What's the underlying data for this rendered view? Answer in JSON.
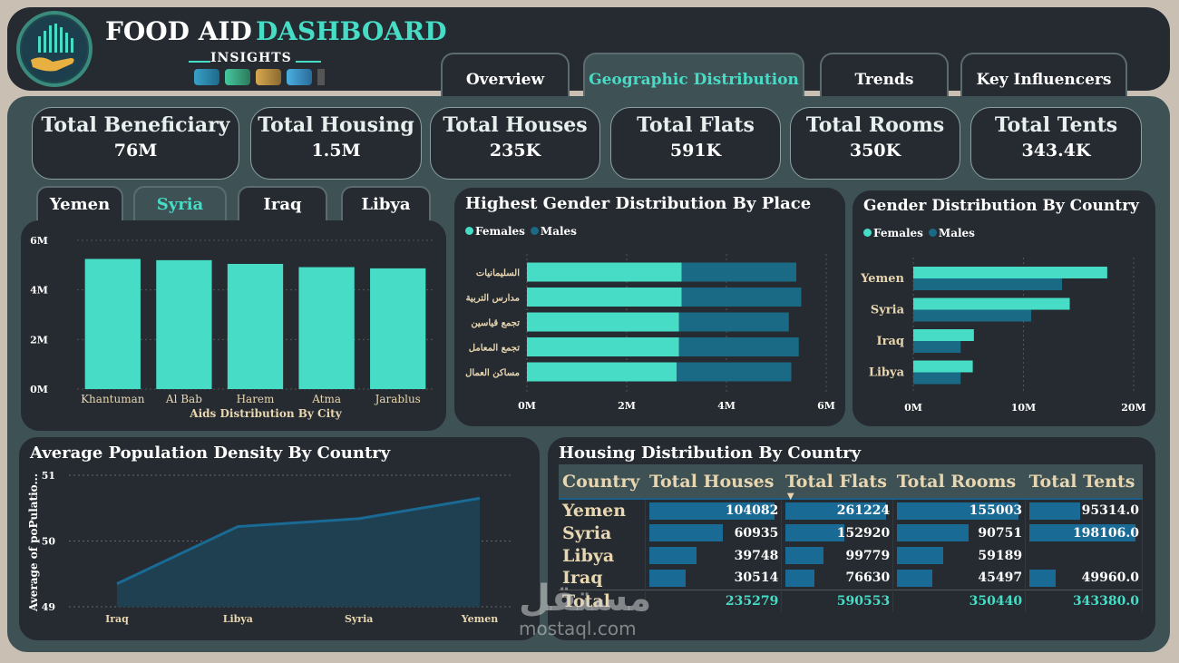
{
  "header": {
    "title_part1": "FOOD AID",
    "title_part2": "DASHBOARD",
    "subtitle": "INSIGHTS"
  },
  "nav_tabs": [
    "Overview",
    "Geographic Distribution",
    "Trends",
    "Key Influencers"
  ],
  "active_tab": "Geographic Distribution",
  "kpis": [
    {
      "label": "Total Beneficiary",
      "value": "76M"
    },
    {
      "label": "Total Housing",
      "value": "1.5M"
    },
    {
      "label": "Total Houses",
      "value": "235K"
    },
    {
      "label": "Total Flats",
      "value": "591K"
    },
    {
      "label": "Total Rooms",
      "value": "350K"
    },
    {
      "label": "Total Tents",
      "value": "343.4K"
    }
  ],
  "country_tabs": [
    "Yemen",
    "Syria",
    "Iraq",
    "Libya"
  ],
  "active_country": "Syria",
  "colors": {
    "females": "#46dcc6",
    "males": "#1a6a85",
    "accent": "#46dcc6",
    "panel": "#252b30"
  },
  "legend": {
    "females": "Females",
    "males": "Males"
  },
  "chart_data": [
    {
      "type": "bar",
      "title": "Aids Distribution By City",
      "categories": [
        "Khantuman",
        "Al Bab",
        "Harem",
        "Atma",
        "Jarablus"
      ],
      "values": [
        5.25,
        5.2,
        5.05,
        4.92,
        4.87
      ],
      "unit": "M",
      "yticks": [
        "0M",
        "2M",
        "4M",
        "6M"
      ],
      "ylim": [
        0,
        6
      ]
    },
    {
      "type": "bar",
      "orientation": "horizontal",
      "stacked": true,
      "title": "Highest Gender Distribution By Place",
      "categories": [
        "السليمانيات",
        "مدارس التربية",
        "تجمع قياسين",
        "تجمع المعامل",
        "مساكن العمال"
      ],
      "series": [
        {
          "name": "Females",
          "values": [
            3.1,
            3.1,
            3.05,
            3.05,
            3.0
          ]
        },
        {
          "name": "Males",
          "values": [
            2.3,
            2.4,
            2.2,
            2.4,
            2.3
          ]
        }
      ],
      "xticks": [
        "0M",
        "2M",
        "4M",
        "6M"
      ],
      "xlim": [
        0,
        6
      ]
    },
    {
      "type": "bar",
      "orientation": "horizontal",
      "title": "Gender Distribution By Country",
      "categories": [
        "Yemen",
        "Syria",
        "Iraq",
        "Libya"
      ],
      "series": [
        {
          "name": "Females",
          "values": [
            17.6,
            14.2,
            5.5,
            5.4
          ]
        },
        {
          "name": "Males",
          "values": [
            13.5,
            10.7,
            4.3,
            4.3
          ]
        }
      ],
      "xticks": [
        "0M",
        "10M",
        "20M"
      ],
      "xlim": [
        0,
        20
      ]
    },
    {
      "type": "area",
      "title": "Average Population Density By Country",
      "ylabel": "Average of poPulatio...",
      "categories": [
        "Iraq",
        "Libya",
        "Syria",
        "Yemen"
      ],
      "values": [
        49.35,
        50.22,
        50.34,
        50.65
      ],
      "yticks": [
        "49",
        "50",
        "51"
      ],
      "ylim": [
        49,
        51
      ]
    },
    {
      "type": "table",
      "title": "Housing Distribution By Country",
      "columns": [
        "Country",
        "Total Houses",
        "Total Flats",
        "Total Rooms",
        "Total Tents"
      ],
      "sort_indicator": "▼",
      "rows": [
        {
          "country": "Yemen",
          "houses": "104082",
          "flats": "261224",
          "rooms": "155003",
          "tents": "95314.0"
        },
        {
          "country": "Syria",
          "houses": "60935",
          "flats": "152920",
          "rooms": "90751",
          "tents": "198106.0"
        },
        {
          "country": "Libya",
          "houses": "39748",
          "flats": "99779",
          "rooms": "59189",
          "tents": ""
        },
        {
          "country": "Iraq",
          "houses": "30514",
          "flats": "76630",
          "rooms": "45497",
          "tents": "49960.0"
        }
      ],
      "bar_fractions": [
        [
          1.0,
          1.0,
          1.0,
          0.48
        ],
        [
          0.59,
          0.59,
          0.59,
          1.0
        ],
        [
          0.38,
          0.38,
          0.38,
          0
        ],
        [
          0.29,
          0.29,
          0.29,
          0.25
        ]
      ],
      "total": {
        "country": "Total",
        "houses": "235279",
        "flats": "590553",
        "rooms": "350440",
        "tents": "343380.0"
      }
    }
  ],
  "watermark": {
    "arabic": "مستقل",
    "latin": "mostaql.com"
  }
}
